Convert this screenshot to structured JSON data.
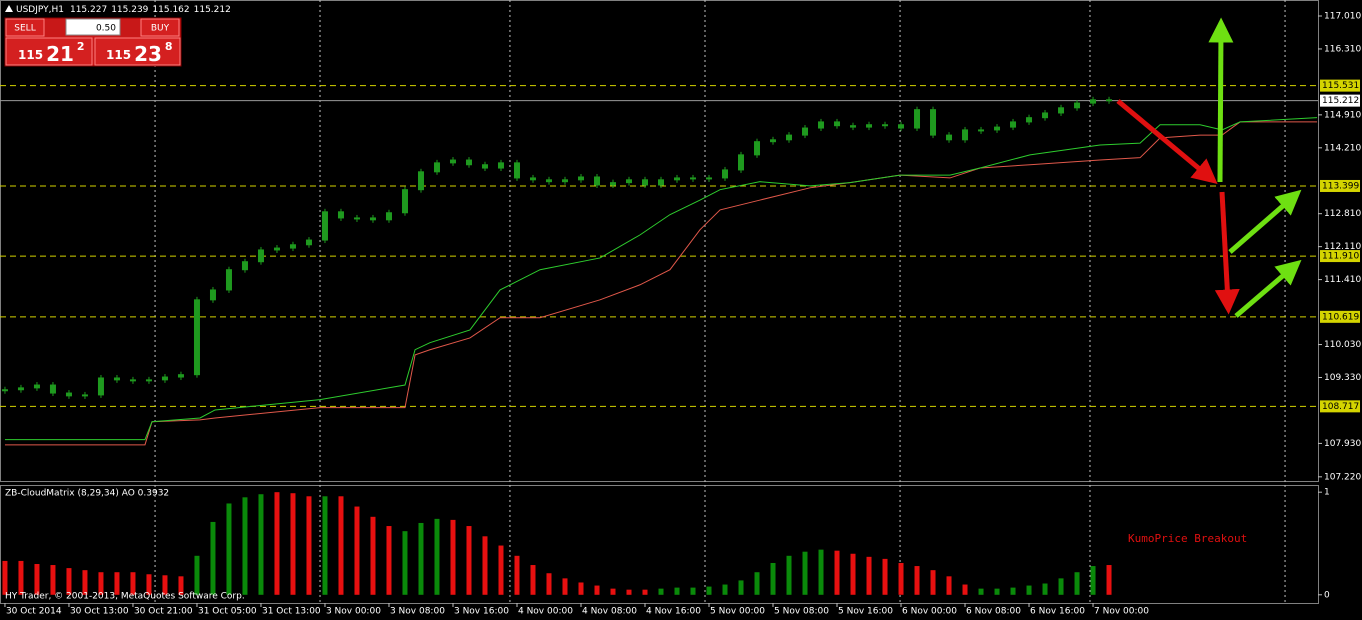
{
  "header": {
    "symbol": "USDJPY,H1",
    "quote": [
      "115.227",
      "115.239",
      "115.162",
      "115.212"
    ]
  },
  "trade_panel": {
    "sell": "SELL",
    "buy": "BUY",
    "lot": "0.50",
    "bid": {
      "big": "115",
      "main": "21",
      "sup": "2"
    },
    "ask": {
      "big": "115",
      "main": "23",
      "sup": "8"
    }
  },
  "footer": "HY Trader, © 2001-2013, MetaQuotes Software Corp.",
  "chart_data": [
    {
      "type": "candlestick",
      "color": "#1f9a1f",
      "values": [
        109.07,
        109.11,
        109.17,
        109.0,
        108.94,
        108.96,
        109.32,
        109.28,
        109.28,
        109.28,
        109.34,
        109.39,
        110.98,
        111.19,
        111.62,
        111.79,
        112.04,
        112.08,
        112.15,
        112.25,
        112.85,
        112.72,
        112.72,
        112.68,
        112.83,
        113.32,
        113.7,
        113.89,
        113.95,
        113.85,
        113.78,
        113.89,
        113.57,
        113.53,
        113.49,
        113.53,
        113.59,
        113.42,
        113.47,
        113.53,
        113.42,
        113.53,
        113.57,
        113.57,
        113.57,
        113.74,
        114.06,
        114.34,
        114.38,
        114.48,
        114.63,
        114.76,
        114.68,
        114.65,
        114.7,
        114.7,
        114.63,
        115.02,
        114.48,
        114.38,
        114.59,
        114.59,
        114.65,
        114.76,
        114.85,
        114.95,
        115.06,
        115.16,
        115.23,
        115.21
      ],
      "cloud": {
        "x": [
          0,
          8.75,
          9.19,
          12.19,
          13.13,
          19.69,
          25,
          25.63,
          26.56,
          29.06,
          30.94,
          33.44,
          37.19,
          39.69,
          41.56,
          43.44,
          44.69,
          47.19,
          50.31,
          52.81,
          55.94,
          59.06,
          60.94,
          64.06,
          68.44,
          70.94,
          72.19,
          74.69,
          76.06,
          77.19,
          82
        ],
        "span_a": [
          108.01,
          108.01,
          108.39,
          108.47,
          108.64,
          108.86,
          109.17,
          109.92,
          110.07,
          110.34,
          111.19,
          111.62,
          111.87,
          112.36,
          112.79,
          113.1,
          113.32,
          113.49,
          113.4,
          113.47,
          113.63,
          113.63,
          113.78,
          114.06,
          114.27,
          114.31,
          114.7,
          114.7,
          114.59,
          114.76,
          114.85
        ],
        "span_b": [
          107.9,
          107.9,
          108.39,
          108.43,
          108.47,
          108.69,
          108.69,
          109.81,
          109.92,
          110.17,
          110.6,
          110.6,
          110.98,
          111.3,
          111.62,
          112.47,
          112.89,
          113.1,
          113.36,
          113.47,
          113.63,
          113.57,
          113.78,
          113.85,
          113.95,
          114.0,
          114.42,
          114.48,
          114.48,
          114.76,
          114.76
        ],
        "color_a": "#2ecc2e",
        "color_b": "#e0584a"
      },
      "levels": [
        {
          "value": 115.531,
          "label": "115.531"
        },
        {
          "value": 113.399,
          "label": "113.399"
        },
        {
          "value": 111.91,
          "label": "111.910"
        },
        {
          "value": 110.619,
          "label": "110.619"
        },
        {
          "value": 108.717,
          "label": "108.717"
        }
      ],
      "level_color": "#d4d400",
      "current": {
        "value": 115.212,
        "label": "115.212"
      },
      "ylim": [
        107.11,
        117.35
      ],
      "yticks": [
        {
          "value": 117.01,
          "label": "117.010"
        },
        {
          "value": 116.31,
          "label": "116.310"
        },
        {
          "value": 114.91,
          "label": "114.910"
        },
        {
          "value": 114.21,
          "label": "114.210"
        },
        {
          "value": 112.81,
          "label": "112.810"
        },
        {
          "value": 112.11,
          "label": "112.110"
        },
        {
          "value": 111.41,
          "label": "111.410"
        },
        {
          "value": 110.03,
          "label": "110.030"
        },
        {
          "value": 109.33,
          "label": "109.330"
        },
        {
          "value": 107.93,
          "label": "107.930"
        },
        {
          "value": 107.22,
          "label": "107.220"
        }
      ],
      "xlim": [
        -0.31,
        82.06
      ],
      "xticks": [
        {
          "value": 0,
          "label": "30 Oct 2014"
        },
        {
          "value": 4,
          "label": "30 Oct 13:00"
        },
        {
          "value": 8,
          "label": "30 Oct 21:00"
        },
        {
          "value": 12,
          "label": "31 Oct 05:00"
        },
        {
          "value": 16,
          "label": "31 Oct 13:00"
        },
        {
          "value": 20,
          "label": "3 Nov 00:00"
        },
        {
          "value": 24,
          "label": "3 Nov 08:00"
        },
        {
          "value": 28,
          "label": "3 Nov 16:00"
        },
        {
          "value": 32,
          "label": "4 Nov 00:00"
        },
        {
          "value": 36,
          "label": "4 Nov 08:00"
        },
        {
          "value": 40,
          "label": "4 Nov 16:00"
        },
        {
          "value": 44,
          "label": "5 Nov 00:00"
        },
        {
          "value": 48,
          "label": "5 Nov 08:00"
        },
        {
          "value": 52,
          "label": "5 Nov 16:00"
        },
        {
          "value": 56,
          "label": "6 Nov 00:00"
        },
        {
          "value": 60,
          "label": "6 Nov 08:00"
        },
        {
          "value": 64,
          "label": "6 Nov 16:00"
        },
        {
          "value": 68,
          "label": "7 Nov 00:00"
        }
      ],
      "period_separators": [
        9.38,
        19.69,
        31.56,
        43.75,
        55.94,
        67.81,
        80
      ]
    },
    {
      "type": "bar",
      "title": "ZB-CloudMatrix (8,29,34)  AO 0.3932",
      "annotation": "KumoPrice Breakout",
      "values": [
        0.33,
        0.33,
        0.3,
        0.29,
        0.26,
        0.24,
        0.22,
        0.22,
        0.22,
        0.2,
        0.19,
        0.18,
        0.38,
        0.71,
        0.89,
        0.95,
        0.98,
        1.0,
        0.99,
        0.96,
        0.96,
        0.96,
        0.86,
        0.76,
        0.67,
        0.62,
        0.7,
        0.74,
        0.73,
        0.67,
        0.57,
        0.48,
        0.38,
        0.29,
        0.21,
        0.16,
        0.12,
        0.09,
        0.06,
        0.05,
        0.05,
        0.06,
        0.07,
        0.07,
        0.08,
        0.1,
        0.14,
        0.22,
        0.31,
        0.38,
        0.42,
        0.44,
        0.43,
        0.4,
        0.37,
        0.35,
        0.31,
        0.28,
        0.24,
        0.18,
        0.1,
        0.06,
        0.06,
        0.07,
        0.09,
        0.11,
        0.16,
        0.22,
        0.28,
        0.29
      ],
      "colors": [
        "#e81010",
        "#e81010",
        "#e81010",
        "#e81010",
        "#e81010",
        "#e81010",
        "#e81010",
        "#e81010",
        "#e81010",
        "#e81010",
        "#e81010",
        "#e81010",
        "#0a8a0a",
        "#0a8a0a",
        "#0a8a0a",
        "#0a8a0a",
        "#0a8a0a",
        "#e81010",
        "#e81010",
        "#e81010",
        "#0a8a0a",
        "#e81010",
        "#e81010",
        "#e81010",
        "#e81010",
        "#0a8a0a",
        "#0a8a0a",
        "#0a8a0a",
        "#e81010",
        "#e81010",
        "#e81010",
        "#e81010",
        "#e81010",
        "#e81010",
        "#e81010",
        "#e81010",
        "#e81010",
        "#e81010",
        "#e81010",
        "#e81010",
        "#e81010",
        "#0a8a0a",
        "#0a8a0a",
        "#0a8a0a",
        "#0a8a0a",
        "#0a8a0a",
        "#0a8a0a",
        "#0a8a0a",
        "#0a8a0a",
        "#0a8a0a",
        "#0a8a0a",
        "#0a8a0a",
        "#e81010",
        "#e81010",
        "#e81010",
        "#e81010",
        "#e81010",
        "#e81010",
        "#e81010",
        "#e81010",
        "#e81010",
        "#0a8a0a",
        "#0a8a0a",
        "#0a8a0a",
        "#0a8a0a",
        "#0a8a0a",
        "#0a8a0a",
        "#0a8a0a",
        "#0a8a0a",
        "#e81010"
      ],
      "ylim": [
        -0.08,
        1.07
      ],
      "yticks": [
        0,
        1
      ],
      "xlim": [
        -0.31,
        82.06
      ]
    }
  ]
}
